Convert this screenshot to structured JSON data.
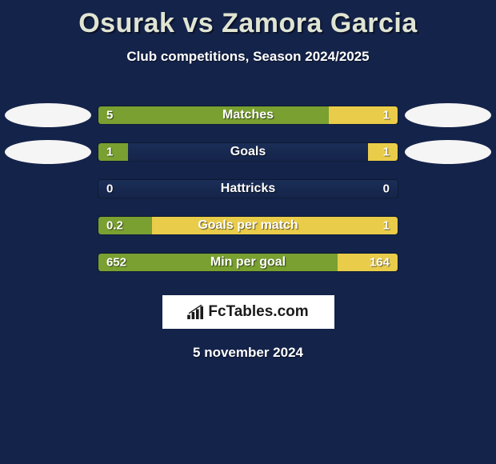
{
  "colors": {
    "background": "#14234a",
    "title_color": "#e0e5d3",
    "left_bar": "#79a030",
    "right_bar": "#e9cc4a",
    "left_ellipse": "#f5f5f5",
    "right_ellipse": "#f5f5f5",
    "bar_track": "#15244a",
    "badge_bg": "#ffffff",
    "badge_text": "#1a1a1a"
  },
  "title": "Osurak vs Zamora Garcia",
  "subtitle": "Club competitions, Season 2024/2025",
  "date": "5 november 2024",
  "badge": {
    "text": "FcTables.com"
  },
  "stats": [
    {
      "label": "Matches",
      "left_value": "5",
      "right_value": "1",
      "left_pct": 77,
      "right_pct": 23,
      "show_ellipses": true
    },
    {
      "label": "Goals",
      "left_value": "1",
      "right_value": "1",
      "left_pct": 10,
      "right_pct": 10,
      "show_ellipses": true
    },
    {
      "label": "Hattricks",
      "left_value": "0",
      "right_value": "0",
      "left_pct": 0,
      "right_pct": 0,
      "show_ellipses": false
    },
    {
      "label": "Goals per match",
      "left_value": "0.2",
      "right_value": "1",
      "left_pct": 18,
      "right_pct": 82,
      "show_ellipses": false
    },
    {
      "label": "Min per goal",
      "left_value": "652",
      "right_value": "164",
      "left_pct": 80,
      "right_pct": 20,
      "show_ellipses": false
    }
  ]
}
